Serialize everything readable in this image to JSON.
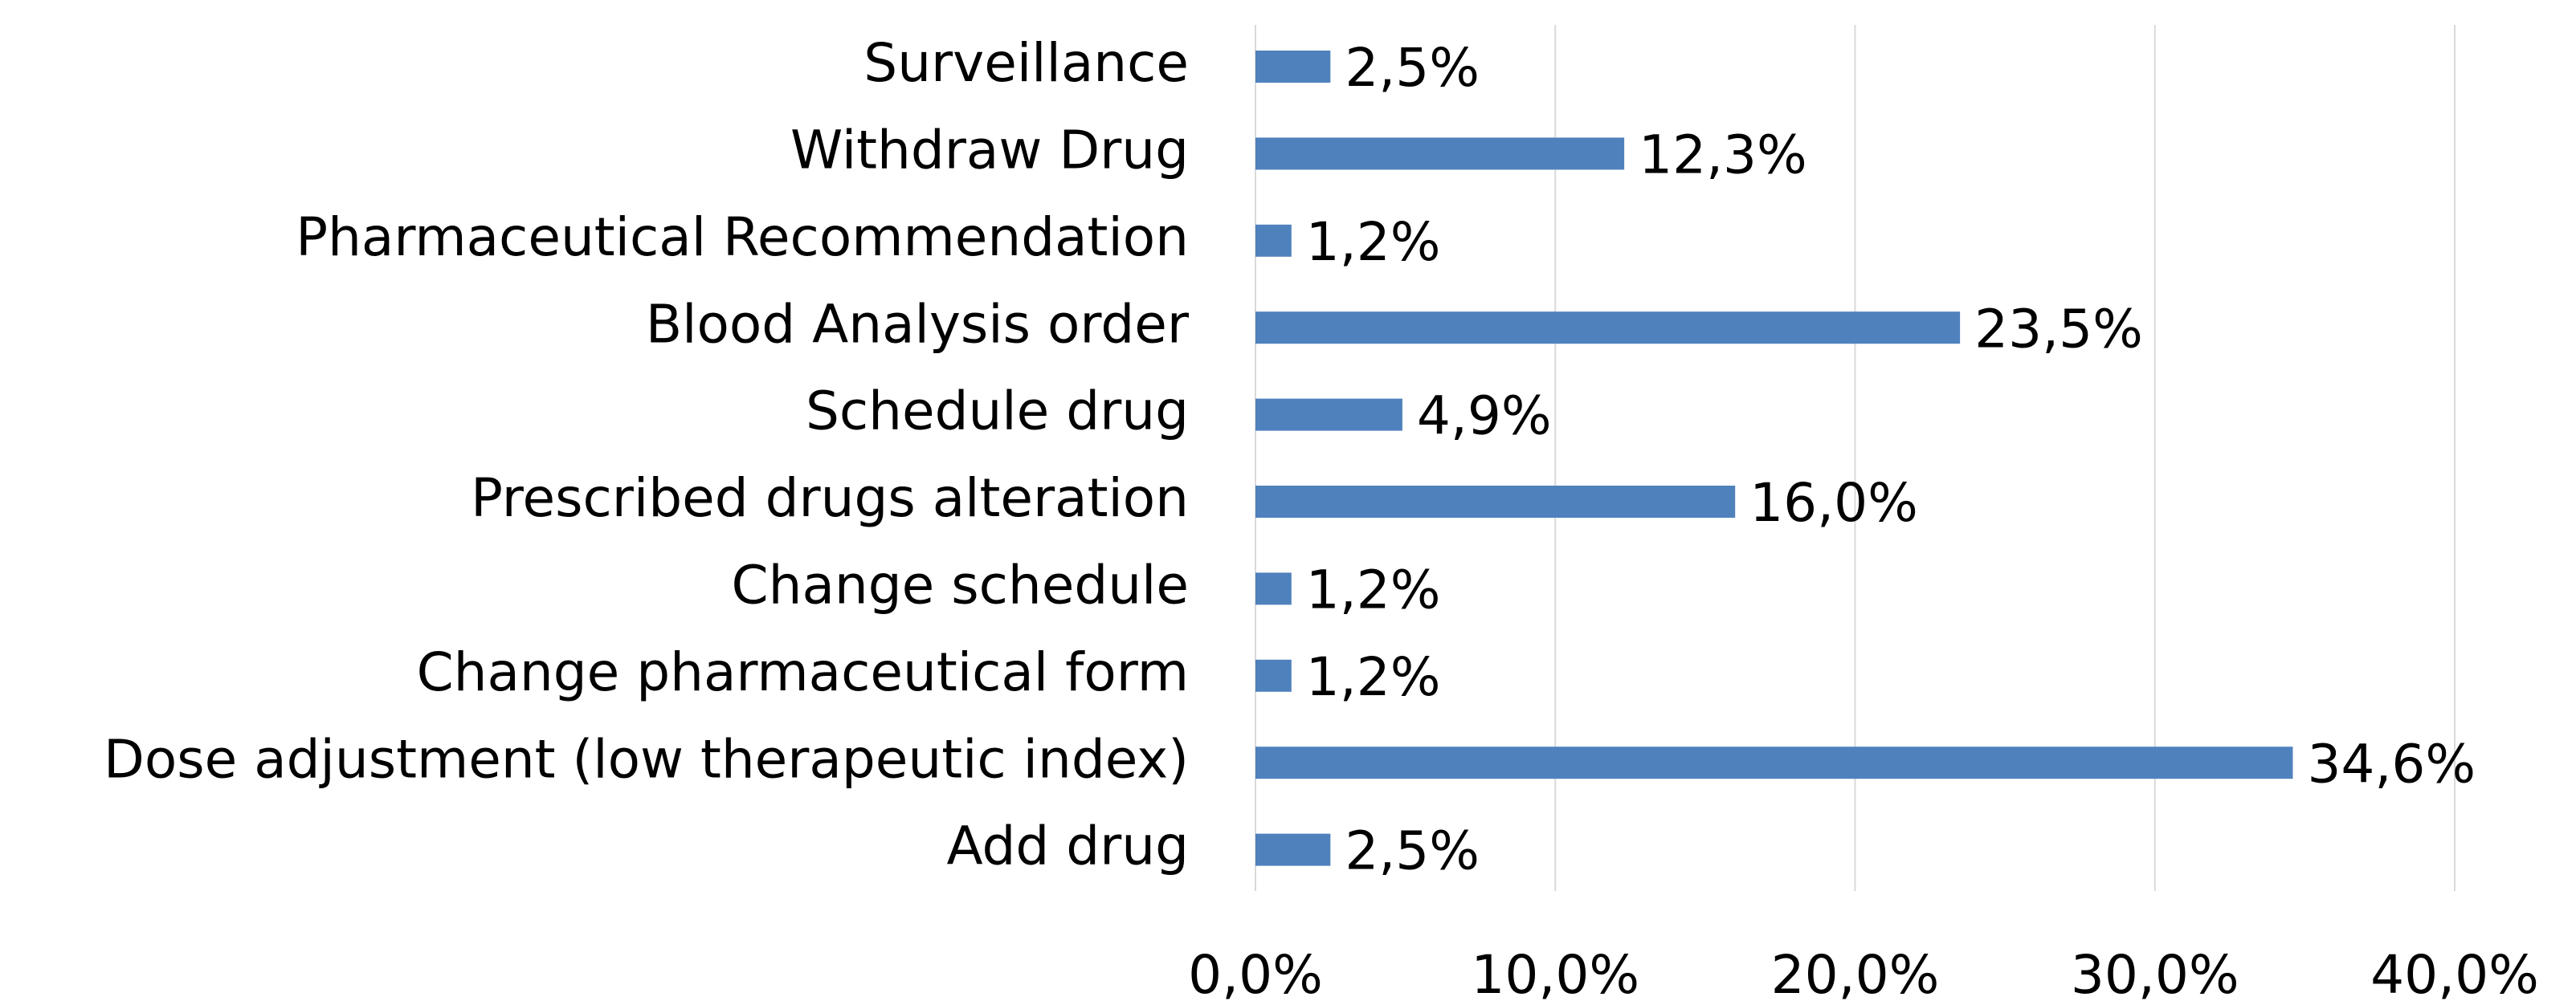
{
  "chart_data": {
    "type": "bar",
    "orientation": "horizontal",
    "categories": [
      "Surveillance",
      "Withdraw Drug",
      "Pharmaceutical Recommendation",
      "Blood Analysis order",
      "Schedule drug",
      "Prescribed drugs alteration",
      "Change schedule",
      "Change pharmaceutical form",
      "Dose adjustment (low therapeutic index)",
      "Add drug"
    ],
    "values": [
      2.5,
      12.3,
      1.2,
      23.5,
      4.9,
      16.0,
      1.2,
      1.2,
      34.6,
      2.5
    ],
    "value_labels": [
      "2,5%",
      "12,3%",
      "1,2%",
      "23,5%",
      "4,9%",
      "16,0%",
      "1,2%",
      "1,2%",
      "34,6%",
      "2,5%"
    ],
    "color": "#4f81bd",
    "xlim": [
      0,
      40
    ],
    "xticks": [
      {
        "value": 0,
        "label": "0,0%"
      },
      {
        "value": 10,
        "label": "10,0%"
      },
      {
        "value": 20,
        "label": "20,0%"
      },
      {
        "value": 30,
        "label": "30,0%"
      },
      {
        "value": 40,
        "label": "40,0%"
      }
    ],
    "grid": true
  }
}
